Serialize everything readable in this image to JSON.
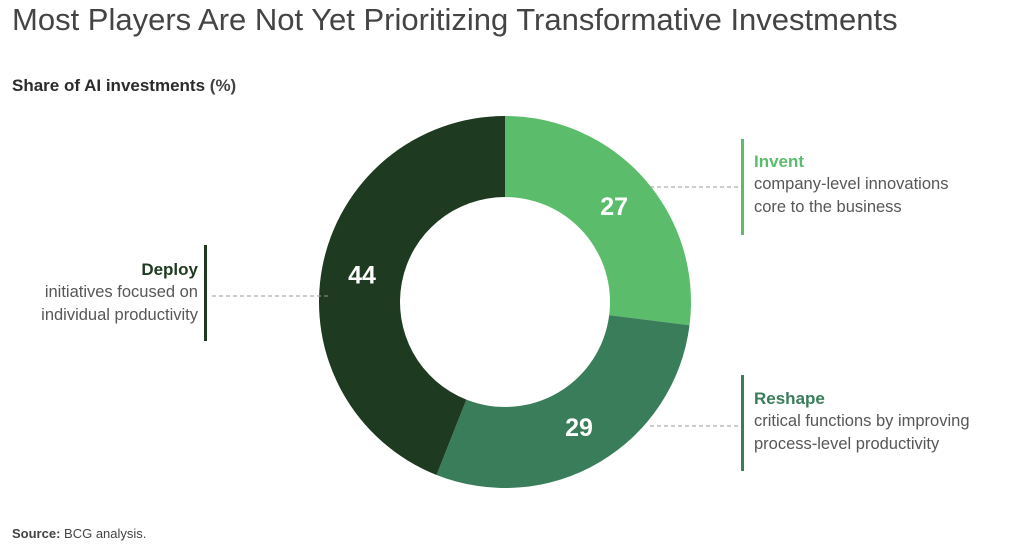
{
  "title": "Most Players Are Not Yet Prioritizing Transformative Investments",
  "subtitle": "Share of AI investments",
  "subtitle_unit": "(%)",
  "source_label": "Source:",
  "source_text": "BCG analysis.",
  "chart_data": {
    "type": "pie",
    "donut": true,
    "title": "Share of AI investments (%)",
    "series": [
      {
        "name": "Invent",
        "value": 27,
        "color": "#5bbd6c",
        "description": [
          "company-level innovations",
          "core to the business"
        ]
      },
      {
        "name": "Reshape",
        "value": 29,
        "color": "#3a7d5a",
        "description": [
          "critical functions by improving",
          "process-level productivity"
        ]
      },
      {
        "name": "Deploy",
        "value": 44,
        "color": "#1e3a20",
        "description": [
          "initiatives focused on",
          "individual productivity"
        ]
      }
    ]
  }
}
